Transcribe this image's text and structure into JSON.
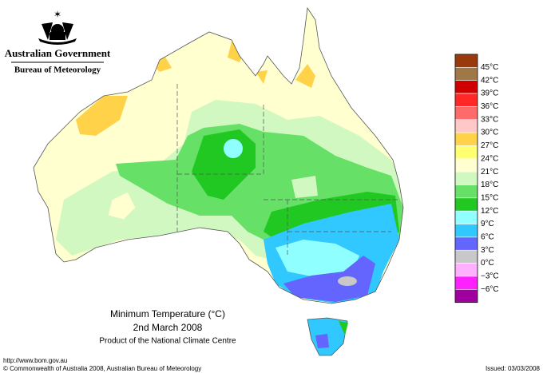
{
  "header": {
    "government": "Australian Government",
    "agency": "Bureau of Meteorology"
  },
  "title": {
    "line1": "Minimum Temperature (°C)",
    "line2": "2nd March 2008",
    "line3": "Product of the National Climate Centre"
  },
  "legend": {
    "labels": [
      "45°C",
      "42°C",
      "39°C",
      "36°C",
      "33°C",
      "30°C",
      "27°C",
      "24°C",
      "21°C",
      "18°C",
      "15°C",
      "12°C",
      "9°C",
      "6°C",
      "3°C",
      "0°C",
      "−3°C",
      "−6°C"
    ],
    "colors": [
      "#9a3a0c",
      "#a07848",
      "#d00000",
      "#ff2828",
      "#ff6a6a",
      "#ffc8c8",
      "#ffd24a",
      "#ffff70",
      "#ffffd0",
      "#d0f8c0",
      "#66e066",
      "#22c822",
      "#90ffff",
      "#30c8ff",
      "#6464ff",
      "#c8c8c8",
      "#ffb0ff",
      "#ff20ff",
      "#a000a0"
    ]
  },
  "footer": {
    "url": "http://www.bom.gov.au",
    "copyright": "© Commonwealth of Australia 2008, Australian Bureau of Meteorology",
    "issued": "Issued: 03/03/2008"
  }
}
